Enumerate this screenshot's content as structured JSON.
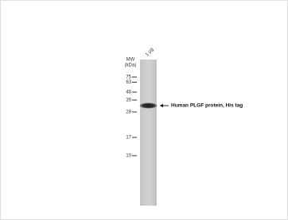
{
  "lane_label": "1 µg",
  "mw_label": "MW",
  "mw_unit": "(kDa)",
  "markers": [
    "75",
    "63",
    "48",
    "35",
    "28",
    "17",
    "10"
  ],
  "band_label": "Human PLGF protein, His tag"
}
